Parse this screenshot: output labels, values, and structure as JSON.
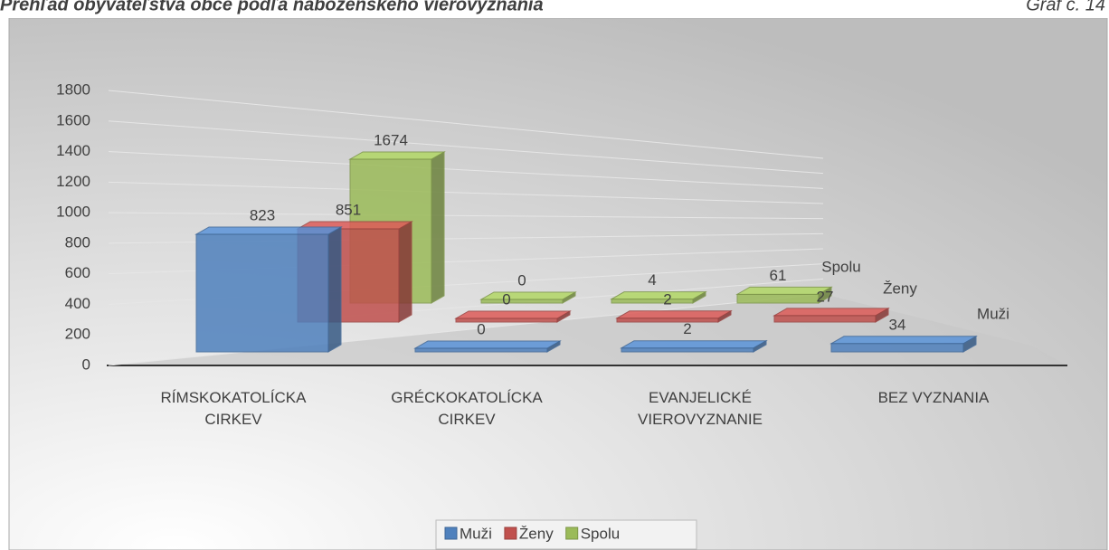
{
  "header": {
    "title": "Prehľad obyvateľstva obce podľa náboženského vierovyznania",
    "label": "Graf č. 14"
  },
  "chart_data": {
    "type": "bar3d",
    "categories": [
      "RÍMSKOKATOLÍCKA CIRKEV",
      "GRÉCKOKATOLÍCKA CIRKEV",
      "EVANJELICKÉ VIEROVYZNANIE",
      "BEZ VYZNANIA"
    ],
    "series": [
      {
        "name": "Muži",
        "color": "#4f81bd",
        "values": [
          823,
          0,
          2,
          34
        ]
      },
      {
        "name": "Ženy",
        "color": "#c0504d",
        "values": [
          851,
          0,
          2,
          27
        ]
      },
      {
        "name": "Spolu",
        "color": "#9bbb59",
        "values": [
          1674,
          0,
          4,
          61
        ]
      }
    ],
    "ylim": [
      0,
      1800
    ],
    "yticks": [
      0,
      200,
      400,
      600,
      800,
      1000,
      1200,
      1400,
      1600,
      1800
    ],
    "grid": true,
    "legend": "bottom"
  }
}
